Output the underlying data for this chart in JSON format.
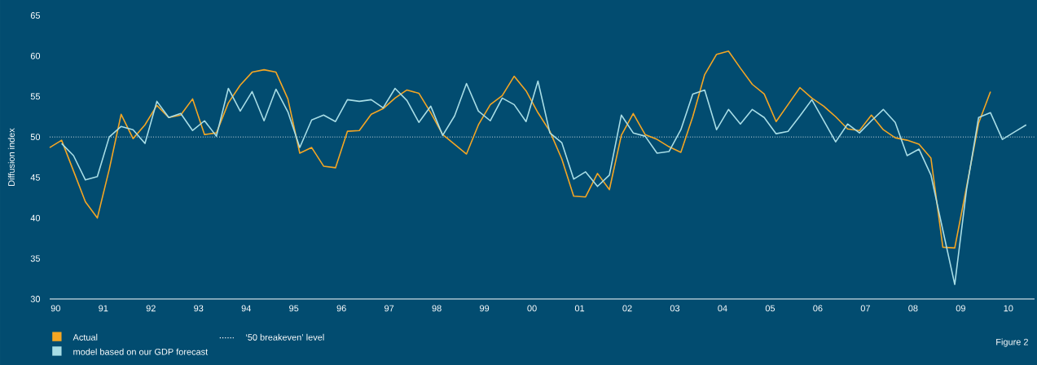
{
  "chart_data": {
    "type": "line",
    "ylabel": "Diffusion index",
    "x": [
      1989.875,
      1990.125,
      1990.375,
      1990.625,
      1990.875,
      1991.125,
      1991.375,
      1991.625,
      1991.875,
      1992.125,
      1992.375,
      1992.625,
      1992.875,
      1993.125,
      1993.375,
      1993.625,
      1993.875,
      1994.125,
      1994.375,
      1994.625,
      1994.875,
      1995.125,
      1995.375,
      1995.625,
      1995.875,
      1996.125,
      1996.375,
      1996.625,
      1996.875,
      1997.125,
      1997.375,
      1997.625,
      1997.875,
      1998.125,
      1998.375,
      1998.625,
      1998.875,
      1999.125,
      1999.375,
      1999.625,
      1999.875,
      2000.125,
      2000.375,
      2000.625,
      2000.875,
      2001.125,
      2001.375,
      2001.625,
      2001.875,
      2002.125,
      2002.375,
      2002.625,
      2002.875,
      2003.125,
      2003.375,
      2003.625,
      2003.875,
      2004.125,
      2004.375,
      2004.625,
      2004.875,
      2005.125,
      2005.375,
      2005.625,
      2005.875,
      2006.125,
      2006.375,
      2006.625,
      2006.875,
      2007.125,
      2007.375,
      2007.625,
      2007.875,
      2008.125,
      2008.375,
      2008.625,
      2008.875,
      2009.125,
      2009.375,
      2009.625,
      2009.875,
      2010.125,
      2010.375
    ],
    "series": [
      {
        "name": "Actual",
        "color": "#f5a623",
        "values": [
          48.7,
          49.6,
          45.8,
          42.0,
          40.0,
          46.0,
          52.8,
          49.8,
          51.5,
          53.9,
          52.4,
          52.7,
          54.7,
          50.3,
          50.5,
          54.2,
          56.4,
          58.0,
          58.3,
          58.0,
          54.7,
          48.0,
          48.7,
          46.4,
          46.2,
          50.7,
          50.8,
          52.8,
          53.5,
          54.8,
          55.8,
          55.4,
          53.0,
          50.3,
          49.1,
          47.9,
          51.5,
          54.0,
          55.1,
          57.5,
          55.7,
          53.0,
          50.7,
          47.3,
          42.7,
          42.6,
          45.5,
          43.5,
          50.2,
          52.9,
          50.3,
          49.7,
          48.8,
          48.1,
          52.5,
          57.7,
          60.2,
          60.6,
          58.5,
          56.5,
          55.3,
          51.9,
          54.0,
          56.1,
          54.8,
          53.8,
          52.5,
          51.0,
          50.8,
          52.7,
          50.9,
          49.9,
          49.6,
          49.1,
          47.4,
          36.4,
          36.3,
          43.9,
          51.7,
          55.6,
          null,
          null,
          null
        ]
      },
      {
        "name": "model based on our GDP forecast",
        "color": "#a8dde6",
        "values": [
          null,
          49.2,
          47.7,
          44.7,
          45.1,
          50.0,
          51.3,
          50.9,
          49.2,
          54.4,
          52.4,
          52.9,
          50.8,
          52.0,
          50.1,
          56.0,
          53.2,
          55.6,
          52.0,
          55.9,
          53.1,
          48.7,
          52.1,
          52.7,
          51.9,
          54.6,
          54.4,
          54.6,
          53.6,
          56.0,
          54.5,
          51.8,
          53.8,
          50.2,
          52.6,
          56.6,
          53.2,
          52.0,
          54.8,
          54.0,
          51.9,
          56.9,
          50.5,
          49.3,
          44.8,
          45.7,
          43.9,
          45.3,
          52.7,
          50.5,
          50.1,
          48.0,
          48.2,
          50.9,
          55.3,
          55.8,
          50.9,
          53.4,
          51.6,
          53.4,
          52.4,
          50.4,
          50.7,
          52.6,
          54.6,
          52.0,
          49.4,
          51.6,
          50.5,
          52.0,
          53.4,
          51.8,
          47.7,
          48.5,
          45.3,
          38.5,
          31.8,
          43.6,
          52.4,
          53.0,
          49.7,
          50.6,
          51.5
        ]
      }
    ],
    "xlim": [
      1989.875,
      2010.55
    ],
    "xticks": [
      {
        "value": 1990,
        "label": "90"
      },
      {
        "value": 1991,
        "label": "91"
      },
      {
        "value": 1992,
        "label": "92"
      },
      {
        "value": 1993,
        "label": "93"
      },
      {
        "value": 1994,
        "label": "94"
      },
      {
        "value": 1995,
        "label": "95"
      },
      {
        "value": 1996,
        "label": "96"
      },
      {
        "value": 1997,
        "label": "97"
      },
      {
        "value": 1998,
        "label": "98"
      },
      {
        "value": 1999,
        "label": "99"
      },
      {
        "value": 2000,
        "label": "00"
      },
      {
        "value": 2001,
        "label": "01"
      },
      {
        "value": 2002,
        "label": "02"
      },
      {
        "value": 2003,
        "label": "03"
      },
      {
        "value": 2004,
        "label": "04"
      },
      {
        "value": 2005,
        "label": "05"
      },
      {
        "value": 2006,
        "label": "06"
      },
      {
        "value": 2007,
        "label": "07"
      },
      {
        "value": 2008,
        "label": "08"
      },
      {
        "value": 2009,
        "label": "09"
      },
      {
        "value": 2010,
        "label": "10"
      }
    ],
    "ylim": [
      30,
      65
    ],
    "yticks": [
      30,
      35,
      40,
      45,
      50,
      55,
      60,
      65
    ],
    "ref_lines": [
      {
        "axis": "y",
        "value": 50,
        "label": "‘50 breakeven’ level",
        "color": "#ffffff",
        "line_style": "dotted"
      }
    ],
    "legend": "bottom left",
    "grid": false,
    "annotations": [
      "Figure 2"
    ]
  }
}
